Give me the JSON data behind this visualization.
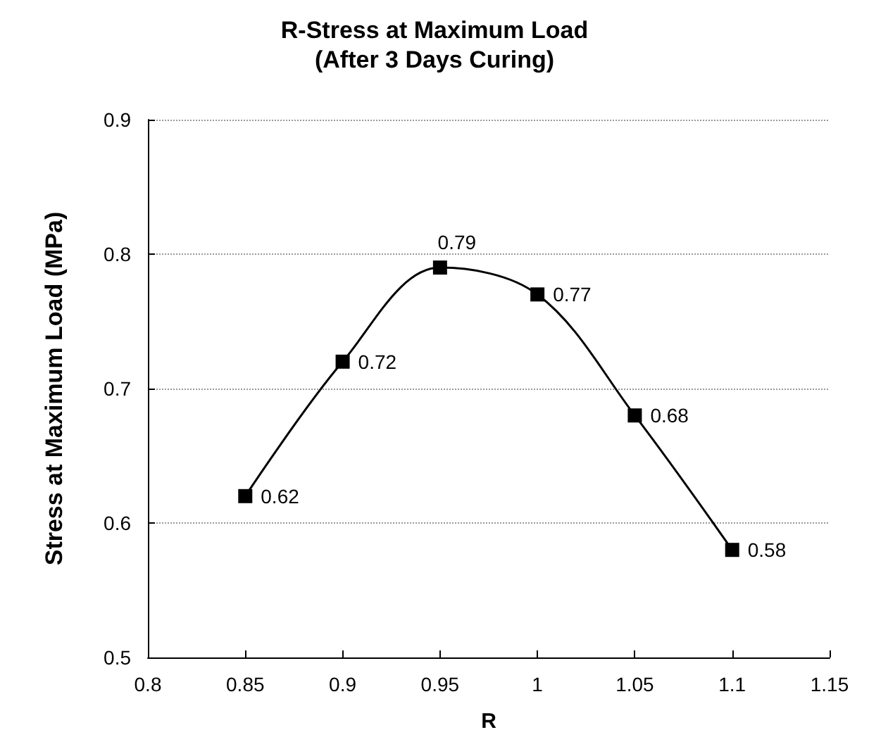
{
  "chart_data": {
    "type": "line",
    "title": "R-Stress at Maximum Load",
    "subtitle": "(After 3 Days Curing)",
    "xlabel": "R",
    "ylabel": "Stress at Maximum Load (MPa)",
    "x": [
      0.85,
      0.9,
      0.95,
      1,
      1.05,
      1.1
    ],
    "series": [
      {
        "color": "#000000",
        "values": [
          0.62,
          0.72,
          0.79,
          0.77,
          0.68,
          0.58
        ]
      }
    ],
    "data_labels": true,
    "marker": "square",
    "line_style": "solid",
    "grid": "y",
    "xlim": [
      0.8,
      1.15
    ],
    "xticks": [
      0.8,
      0.85,
      0.9,
      0.95,
      1,
      1.05,
      1.1,
      1.15
    ],
    "ylim": [
      0.5,
      0.9
    ],
    "yticks": [
      0.5,
      0.6,
      0.7,
      0.8,
      0.9
    ]
  }
}
